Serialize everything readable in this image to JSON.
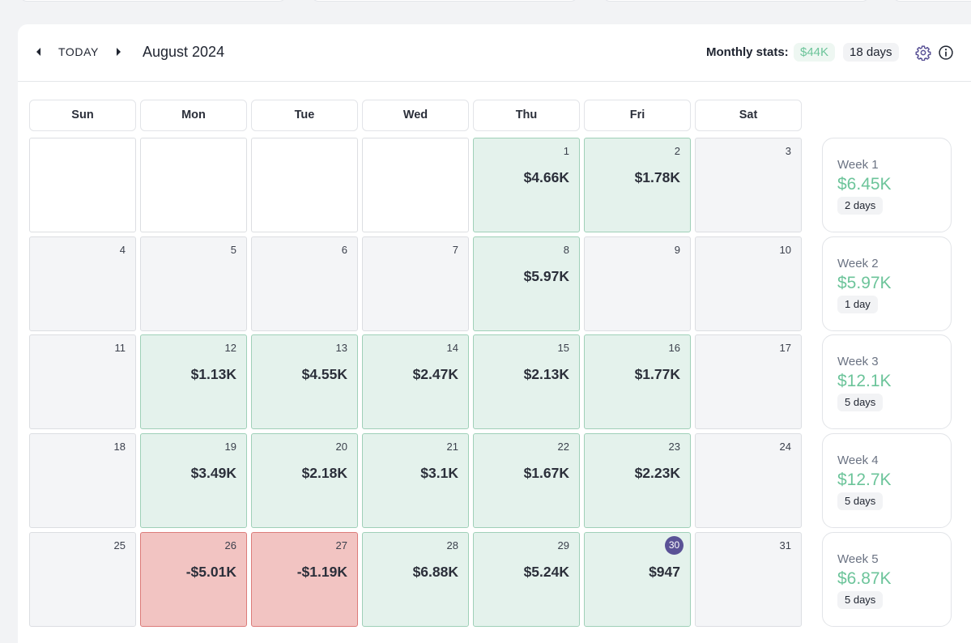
{
  "header": {
    "today_label": "TODAY",
    "month_title": "August 2024",
    "stats_label": "Monthly stats:",
    "stats_profit": "$44K",
    "stats_days": "18 days"
  },
  "icons": {
    "prev": "caret-left-icon",
    "next": "caret-right-icon",
    "settings": "gear-icon",
    "info": "info-icon"
  },
  "colors": {
    "profit_bg": "#e4f2ec",
    "profit_border": "#9fd0b8",
    "loss_bg": "#f2c4c2",
    "loss_border": "#dc7c7a",
    "profit_text": "#6cc49a",
    "today_badge": "#5a5296"
  },
  "weekdays": [
    "Sun",
    "Mon",
    "Tue",
    "Wed",
    "Thu",
    "Fri",
    "Sat"
  ],
  "days": [
    {
      "day": "",
      "value": "",
      "status": "empty"
    },
    {
      "day": "",
      "value": "",
      "status": "empty"
    },
    {
      "day": "",
      "value": "",
      "status": "empty"
    },
    {
      "day": "",
      "value": "",
      "status": "empty"
    },
    {
      "day": "1",
      "value": "$4.66K",
      "status": "profit"
    },
    {
      "day": "2",
      "value": "$1.78K",
      "status": "profit"
    },
    {
      "day": "3",
      "value": "",
      "status": "none"
    },
    {
      "day": "4",
      "value": "",
      "status": "none"
    },
    {
      "day": "5",
      "value": "",
      "status": "none"
    },
    {
      "day": "6",
      "value": "",
      "status": "none"
    },
    {
      "day": "7",
      "value": "",
      "status": "none"
    },
    {
      "day": "8",
      "value": "$5.97K",
      "status": "profit"
    },
    {
      "day": "9",
      "value": "",
      "status": "none"
    },
    {
      "day": "10",
      "value": "",
      "status": "none"
    },
    {
      "day": "11",
      "value": "",
      "status": "none"
    },
    {
      "day": "12",
      "value": "$1.13K",
      "status": "profit"
    },
    {
      "day": "13",
      "value": "$4.55K",
      "status": "profit"
    },
    {
      "day": "14",
      "value": "$2.47K",
      "status": "profit"
    },
    {
      "day": "15",
      "value": "$2.13K",
      "status": "profit"
    },
    {
      "day": "16",
      "value": "$1.77K",
      "status": "profit"
    },
    {
      "day": "17",
      "value": "",
      "status": "none"
    },
    {
      "day": "18",
      "value": "",
      "status": "none"
    },
    {
      "day": "19",
      "value": "$3.49K",
      "status": "profit"
    },
    {
      "day": "20",
      "value": "$2.18K",
      "status": "profit"
    },
    {
      "day": "21",
      "value": "$3.1K",
      "status": "profit"
    },
    {
      "day": "22",
      "value": "$1.67K",
      "status": "profit"
    },
    {
      "day": "23",
      "value": "$2.23K",
      "status": "profit"
    },
    {
      "day": "24",
      "value": "",
      "status": "none"
    },
    {
      "day": "25",
      "value": "",
      "status": "none"
    },
    {
      "day": "26",
      "value": "-$5.01K",
      "status": "loss"
    },
    {
      "day": "27",
      "value": "-$1.19K",
      "status": "loss"
    },
    {
      "day": "28",
      "value": "$6.88K",
      "status": "profit"
    },
    {
      "day": "29",
      "value": "$5.24K",
      "status": "profit"
    },
    {
      "day": "30",
      "value": "$947",
      "status": "profit",
      "today": true
    },
    {
      "day": "31",
      "value": "",
      "status": "none"
    }
  ],
  "weeks": [
    {
      "label": "Week 1",
      "value": "$6.45K",
      "days": "2 days"
    },
    {
      "label": "Week 2",
      "value": "$5.97K",
      "days": "1 day"
    },
    {
      "label": "Week 3",
      "value": "$12.1K",
      "days": "5 days"
    },
    {
      "label": "Week 4",
      "value": "$12.7K",
      "days": "5 days"
    },
    {
      "label": "Week 5",
      "value": "$6.87K",
      "days": "5 days"
    }
  ]
}
